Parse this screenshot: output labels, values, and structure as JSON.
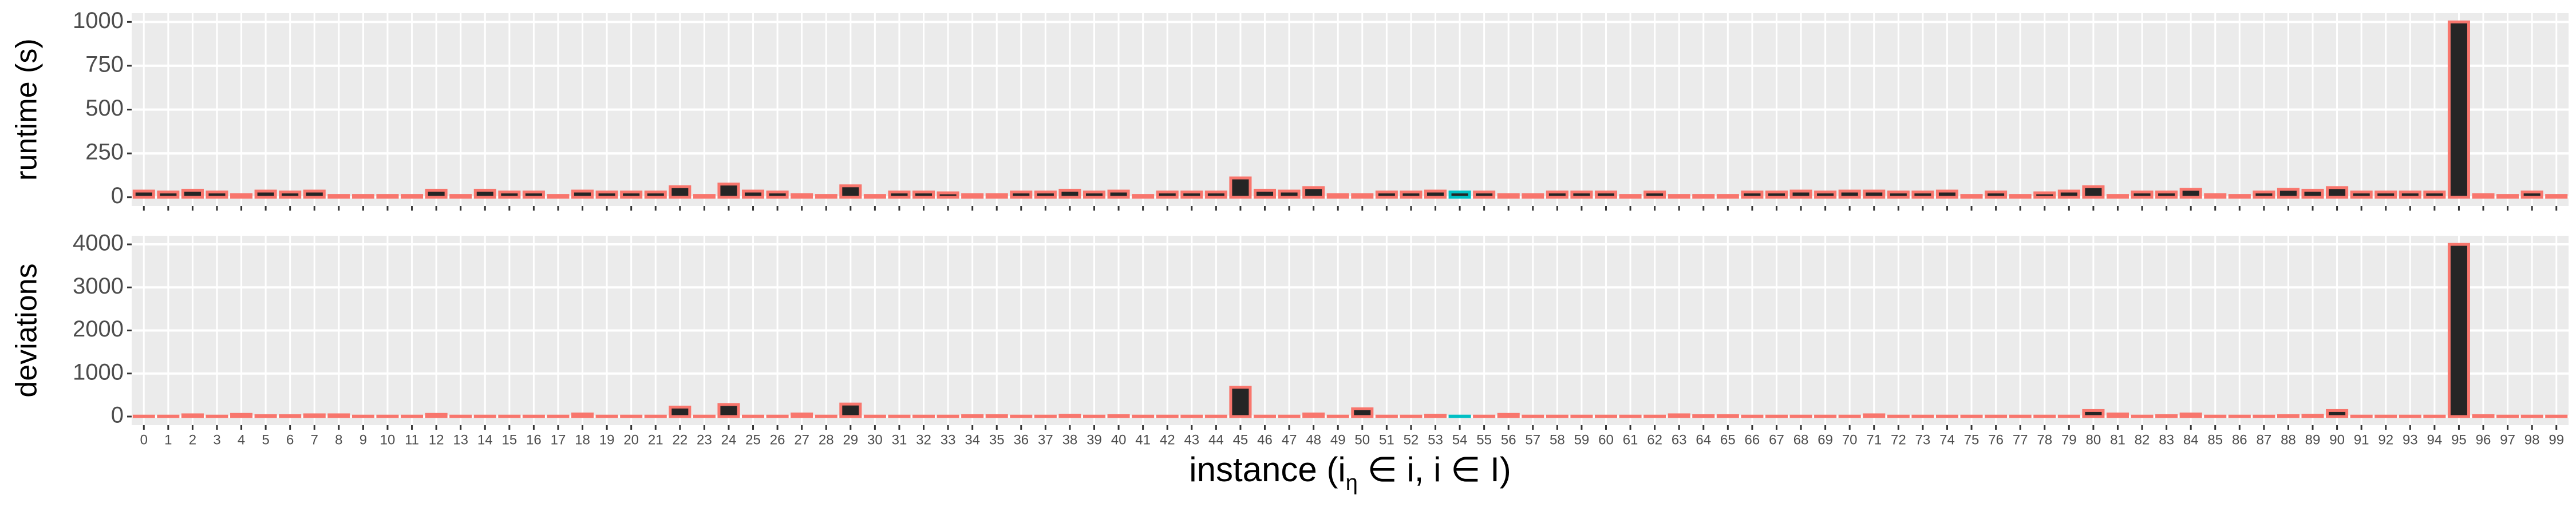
{
  "chart_data": [
    {
      "type": "bar",
      "y_label": "runtime (s)",
      "values": [
        35,
        30,
        40,
        30,
        15,
        35,
        30,
        35,
        10,
        10,
        10,
        10,
        40,
        10,
        40,
        30,
        30,
        10,
        35,
        30,
        30,
        30,
        60,
        10,
        75,
        35,
        30,
        15,
        10,
        65,
        10,
        30,
        30,
        25,
        15,
        15,
        30,
        30,
        40,
        30,
        35,
        10,
        30,
        30,
        30,
        110,
        40,
        35,
        55,
        15,
        15,
        30,
        30,
        35,
        30,
        30,
        15,
        15,
        30,
        30,
        30,
        10,
        30,
        10,
        10,
        10,
        30,
        30,
        35,
        30,
        35,
        35,
        30,
        30,
        35,
        10,
        30,
        10,
        25,
        35,
        60,
        10,
        30,
        30,
        45,
        15,
        10,
        30,
        45,
        40,
        55,
        30,
        30,
        30,
        30,
        1000,
        15,
        10,
        30,
        10
      ],
      "fill": "#252525",
      "colors": [
        "#F8766D",
        "#F8766D",
        "#F8766D",
        "#F8766D",
        "#F8766D",
        "#F8766D",
        "#F8766D",
        "#F8766D",
        "#F8766D",
        "#F8766D",
        "#F8766D",
        "#F8766D",
        "#F8766D",
        "#F8766D",
        "#F8766D",
        "#F8766D",
        "#F8766D",
        "#F8766D",
        "#F8766D",
        "#F8766D",
        "#F8766D",
        "#F8766D",
        "#F8766D",
        "#F8766D",
        "#F8766D",
        "#F8766D",
        "#F8766D",
        "#F8766D",
        "#F8766D",
        "#F8766D",
        "#F8766D",
        "#F8766D",
        "#F8766D",
        "#F8766D",
        "#F8766D",
        "#F8766D",
        "#F8766D",
        "#F8766D",
        "#F8766D",
        "#F8766D",
        "#F8766D",
        "#F8766D",
        "#F8766D",
        "#F8766D",
        "#F8766D",
        "#F8766D",
        "#F8766D",
        "#F8766D",
        "#F8766D",
        "#F8766D",
        "#F8766D",
        "#F8766D",
        "#F8766D",
        "#F8766D",
        "#00BFC4",
        "#F8766D",
        "#F8766D",
        "#F8766D",
        "#F8766D",
        "#F8766D",
        "#F8766D",
        "#F8766D",
        "#F8766D",
        "#F8766D",
        "#F8766D",
        "#F8766D",
        "#F8766D",
        "#F8766D",
        "#F8766D",
        "#F8766D",
        "#F8766D",
        "#F8766D",
        "#F8766D",
        "#F8766D",
        "#F8766D",
        "#F8766D",
        "#F8766D",
        "#F8766D",
        "#F8766D",
        "#F8766D",
        "#F8766D",
        "#F8766D",
        "#F8766D",
        "#F8766D",
        "#F8766D",
        "#F8766D",
        "#F8766D",
        "#F8766D",
        "#F8766D",
        "#F8766D",
        "#F8766D",
        "#F8766D",
        "#F8766D",
        "#F8766D",
        "#F8766D",
        "#F8766D",
        "#F8766D",
        "#F8766D",
        "#F8766D",
        "#F8766D"
      ],
      "ylim": [
        -50,
        1050
      ],
      "yticks": [
        0,
        250,
        500,
        750,
        1000
      ],
      "grid": true
    },
    {
      "type": "bar",
      "y_label": "deviations",
      "x_label": [
        "instance (i",
        "η",
        " ∈ i, i ∈ I)"
      ],
      "categories": [
        "0",
        "1",
        "2",
        "3",
        "4",
        "5",
        "6",
        "7",
        "8",
        "9",
        "10",
        "11",
        "12",
        "13",
        "14",
        "15",
        "16",
        "17",
        "18",
        "19",
        "20",
        "21",
        "22",
        "23",
        "24",
        "25",
        "26",
        "27",
        "28",
        "29",
        "30",
        "31",
        "32",
        "33",
        "34",
        "35",
        "36",
        "37",
        "38",
        "39",
        "40",
        "41",
        "42",
        "43",
        "44",
        "45",
        "46",
        "47",
        "48",
        "49",
        "50",
        "51",
        "52",
        "53",
        "54",
        "55",
        "56",
        "57",
        "58",
        "59",
        "60",
        "61",
        "62",
        "63",
        "64",
        "65",
        "66",
        "67",
        "68",
        "69",
        "70",
        "71",
        "72",
        "73",
        "74",
        "75",
        "76",
        "77",
        "78",
        "79",
        "80",
        "81",
        "82",
        "83",
        "84",
        "85",
        "86",
        "87",
        "88",
        "89",
        "90",
        "91",
        "92",
        "93",
        "94",
        "95",
        "96",
        "97",
        "98",
        "99"
      ],
      "values": [
        10,
        10,
        40,
        10,
        50,
        20,
        20,
        40,
        40,
        10,
        10,
        10,
        50,
        10,
        10,
        10,
        10,
        10,
        60,
        10,
        10,
        10,
        220,
        10,
        280,
        10,
        10,
        60,
        10,
        290,
        10,
        10,
        10,
        10,
        20,
        20,
        10,
        10,
        30,
        10,
        20,
        10,
        10,
        10,
        10,
        680,
        10,
        10,
        60,
        10,
        180,
        10,
        10,
        30,
        10,
        10,
        50,
        10,
        10,
        10,
        10,
        10,
        10,
        40,
        20,
        20,
        10,
        10,
        10,
        10,
        10,
        40,
        10,
        10,
        10,
        10,
        10,
        10,
        10,
        10,
        140,
        60,
        10,
        20,
        60,
        10,
        10,
        10,
        20,
        30,
        140,
        10,
        10,
        10,
        10,
        4000,
        20,
        10,
        10,
        10
      ],
      "fill": "#252525",
      "colors": [
        "#F8766D",
        "#F8766D",
        "#F8766D",
        "#F8766D",
        "#F8766D",
        "#F8766D",
        "#F8766D",
        "#F8766D",
        "#F8766D",
        "#F8766D",
        "#F8766D",
        "#F8766D",
        "#F8766D",
        "#F8766D",
        "#F8766D",
        "#F8766D",
        "#F8766D",
        "#F8766D",
        "#F8766D",
        "#F8766D",
        "#F8766D",
        "#F8766D",
        "#F8766D",
        "#F8766D",
        "#F8766D",
        "#F8766D",
        "#F8766D",
        "#F8766D",
        "#F8766D",
        "#F8766D",
        "#F8766D",
        "#F8766D",
        "#F8766D",
        "#F8766D",
        "#F8766D",
        "#F8766D",
        "#F8766D",
        "#F8766D",
        "#F8766D",
        "#F8766D",
        "#F8766D",
        "#F8766D",
        "#F8766D",
        "#F8766D",
        "#F8766D",
        "#F8766D",
        "#F8766D",
        "#F8766D",
        "#F8766D",
        "#F8766D",
        "#F8766D",
        "#F8766D",
        "#F8766D",
        "#F8766D",
        "#00BFC4",
        "#F8766D",
        "#F8766D",
        "#F8766D",
        "#F8766D",
        "#F8766D",
        "#F8766D",
        "#F8766D",
        "#F8766D",
        "#F8766D",
        "#F8766D",
        "#F8766D",
        "#F8766D",
        "#F8766D",
        "#F8766D",
        "#F8766D",
        "#F8766D",
        "#F8766D",
        "#F8766D",
        "#F8766D",
        "#F8766D",
        "#F8766D",
        "#F8766D",
        "#F8766D",
        "#F8766D",
        "#F8766D",
        "#F8766D",
        "#F8766D",
        "#F8766D",
        "#F8766D",
        "#F8766D",
        "#F8766D",
        "#F8766D",
        "#F8766D",
        "#F8766D",
        "#F8766D",
        "#F8766D",
        "#F8766D",
        "#F8766D",
        "#F8766D",
        "#F8766D",
        "#F8766D",
        "#F8766D",
        "#F8766D",
        "#F8766D",
        "#F8766D"
      ],
      "ylim": [
        -200,
        4200
      ],
      "yticks": [
        0,
        1000,
        2000,
        3000,
        4000
      ],
      "grid": true
    }
  ]
}
